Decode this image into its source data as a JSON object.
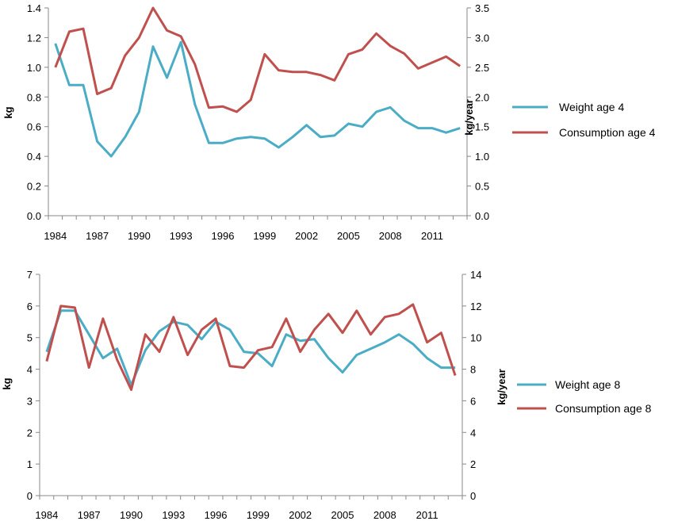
{
  "chart_data": [
    {
      "type": "line",
      "x": [
        1984,
        1985,
        1986,
        1987,
        1988,
        1989,
        1990,
        1991,
        1992,
        1993,
        1994,
        1995,
        1996,
        1997,
        1998,
        1999,
        2000,
        2001,
        2002,
        2003,
        2004,
        2005,
        2006,
        2007,
        2008,
        2009,
        2010,
        2011,
        2012,
        2013
      ],
      "x_tick_labels": [
        "1984",
        "1987",
        "1990",
        "1993",
        "1996",
        "1999",
        "2002",
        "2005",
        "2008",
        "2011"
      ],
      "ylabel": "kg",
      "ylabel2": "kg/year",
      "ylim": [
        0,
        1.4
      ],
      "y_ticks": [
        "0.0",
        "0.2",
        "0.4",
        "0.6",
        "0.8",
        "1.0",
        "1.2",
        "1.4"
      ],
      "ylim2": [
        0,
        3.5
      ],
      "y2_ticks": [
        "0.0",
        "0.5",
        "1.0",
        "1.5",
        "2.0",
        "2.5",
        "3.0",
        "3.5"
      ],
      "legend_position": "right",
      "series": [
        {
          "name": "Weight age 4",
          "axis": "left",
          "color": "#4bacc6",
          "values": [
            1.16,
            0.88,
            0.88,
            0.5,
            0.4,
            0.53,
            0.7,
            1.14,
            0.93,
            1.17,
            0.75,
            0.49,
            0.49,
            0.52,
            0.53,
            0.52,
            0.46,
            0.53,
            0.61,
            0.53,
            0.54,
            0.62,
            0.6,
            0.7,
            0.73,
            0.64,
            0.59,
            0.59,
            0.56,
            0.59
          ]
        },
        {
          "name": "Consumption age 4",
          "axis": "right",
          "color": "#c0504d",
          "values": [
            2.5,
            3.1,
            3.15,
            2.05,
            2.15,
            2.7,
            3.0,
            3.5,
            3.12,
            3.02,
            2.55,
            1.82,
            1.84,
            1.75,
            1.95,
            2.72,
            2.45,
            2.42,
            2.42,
            2.37,
            2.28,
            2.72,
            2.8,
            3.07,
            2.86,
            2.73,
            2.48,
            2.58,
            2.68,
            2.52
          ]
        }
      ]
    },
    {
      "type": "line",
      "x": [
        1984,
        1985,
        1986,
        1987,
        1988,
        1989,
        1990,
        1991,
        1992,
        1993,
        1994,
        1995,
        1996,
        1997,
        1998,
        1999,
        2000,
        2001,
        2002,
        2003,
        2004,
        2005,
        2006,
        2007,
        2008,
        2009,
        2010,
        2011,
        2012,
        2013
      ],
      "x_tick_labels": [
        "1984",
        "1987",
        "1990",
        "1993",
        "1996",
        "1999",
        "2002",
        "2005",
        "2008",
        "2011"
      ],
      "ylabel": "kg",
      "ylabel2": "kg/year",
      "ylim": [
        0,
        7
      ],
      "y_ticks": [
        "0",
        "1",
        "2",
        "3",
        "4",
        "5",
        "6",
        "7"
      ],
      "ylim2": [
        0,
        14
      ],
      "y2_ticks": [
        "0",
        "2",
        "4",
        "6",
        "8",
        "10",
        "12",
        "14"
      ],
      "legend_position": "right",
      "series": [
        {
          "name": "Weight age 8",
          "axis": "left",
          "color": "#4bacc6",
          "values": [
            4.55,
            5.85,
            5.85,
            5.1,
            4.35,
            4.65,
            3.5,
            4.6,
            5.2,
            5.5,
            5.4,
            4.95,
            5.5,
            5.25,
            4.55,
            4.5,
            4.1,
            5.1,
            4.9,
            4.95,
            4.35,
            3.9,
            4.45,
            4.65,
            4.85,
            5.1,
            4.8,
            4.35,
            4.05,
            4.05
          ]
        },
        {
          "name": "Consumption age 8",
          "axis": "right",
          "color": "#c0504d",
          "values": [
            8.5,
            12.0,
            11.9,
            8.1,
            11.2,
            8.6,
            6.7,
            10.2,
            9.1,
            11.3,
            8.9,
            10.5,
            11.2,
            8.2,
            8.1,
            9.2,
            9.4,
            11.2,
            9.1,
            10.5,
            11.5,
            10.3,
            11.7,
            10.2,
            11.3,
            11.5,
            12.1,
            9.7,
            10.3,
            7.6
          ]
        }
      ]
    }
  ]
}
